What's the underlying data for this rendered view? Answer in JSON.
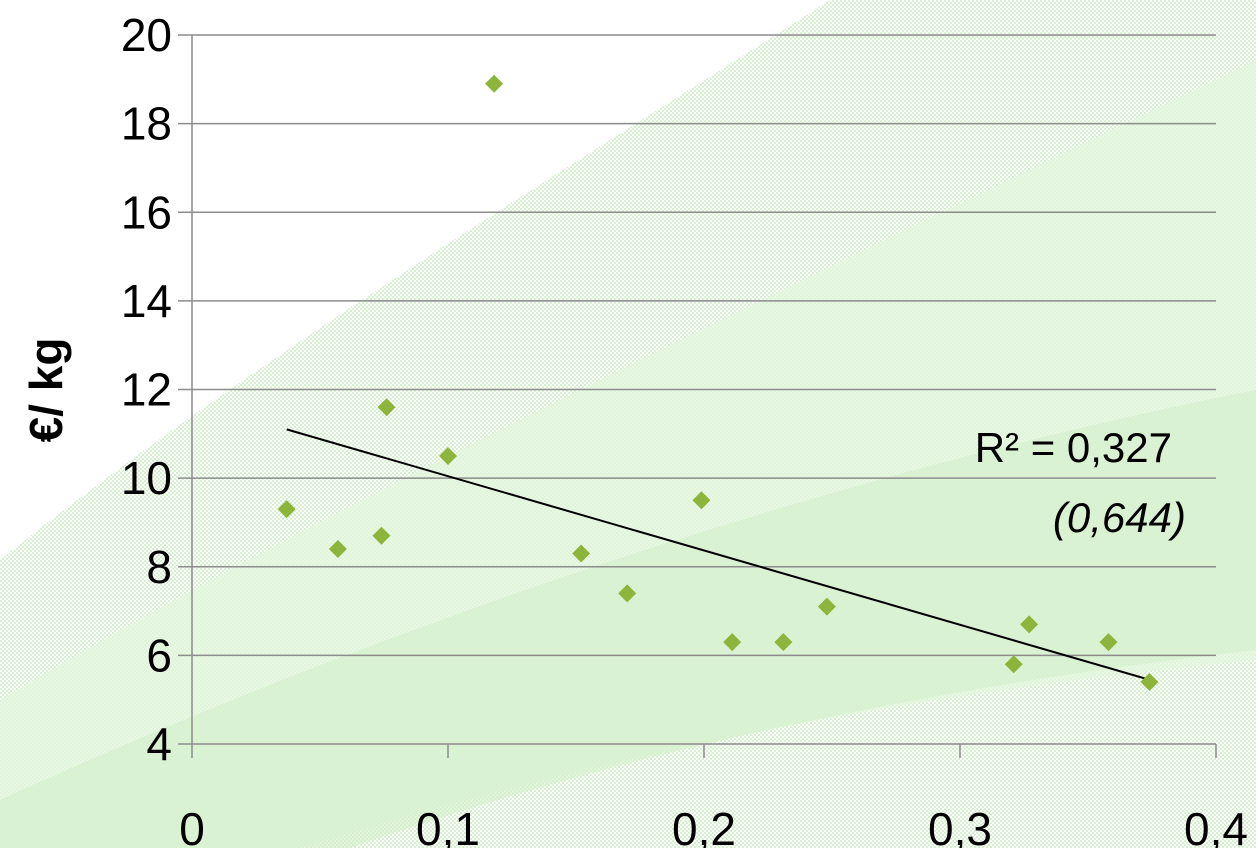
{
  "chart_data": {
    "type": "scatter",
    "title": "",
    "xlabel": "",
    "ylabel": "€/ kg",
    "xlim": [
      0,
      0.4
    ],
    "ylim": [
      4,
      20
    ],
    "x_ticks": [
      0,
      0.1,
      0.2,
      0.3,
      0.4
    ],
    "x_tick_labels": [
      "0",
      "0,1",
      "0,2",
      "0,3",
      "0,4"
    ],
    "y_ticks": [
      4,
      6,
      8,
      10,
      12,
      14,
      16,
      18,
      20
    ],
    "y_tick_labels": [
      "4",
      "6",
      "8",
      "10",
      "12",
      "14",
      "16",
      "18",
      "20"
    ],
    "grid": "horizontal",
    "legend": "none",
    "marker_color": "#8db53c",
    "background_band_color": "#d8f2d0",
    "series": [
      {
        "points": [
          {
            "x": 0.037,
            "y": 9.3
          },
          {
            "x": 0.057,
            "y": 8.4
          },
          {
            "x": 0.074,
            "y": 8.7
          },
          {
            "x": 0.076,
            "y": 11.6
          },
          {
            "x": 0.1,
            "y": 10.5
          },
          {
            "x": 0.118,
            "y": 18.9
          },
          {
            "x": 0.152,
            "y": 8.3
          },
          {
            "x": 0.17,
            "y": 7.4
          },
          {
            "x": 0.199,
            "y": 9.5
          },
          {
            "x": 0.211,
            "y": 6.3
          },
          {
            "x": 0.231,
            "y": 6.3
          },
          {
            "x": 0.248,
            "y": 7.1
          },
          {
            "x": 0.321,
            "y": 5.8
          },
          {
            "x": 0.327,
            "y": 6.7
          },
          {
            "x": 0.358,
            "y": 6.3
          },
          {
            "x": 0.374,
            "y": 5.4
          }
        ]
      }
    ],
    "trendline": {
      "x": [
        0.037,
        0.374
      ],
      "y": [
        11.1,
        5.45
      ],
      "color": "#000000"
    },
    "annotation": {
      "line1": "R² = 0,327",
      "line2": "(0,644)"
    }
  }
}
